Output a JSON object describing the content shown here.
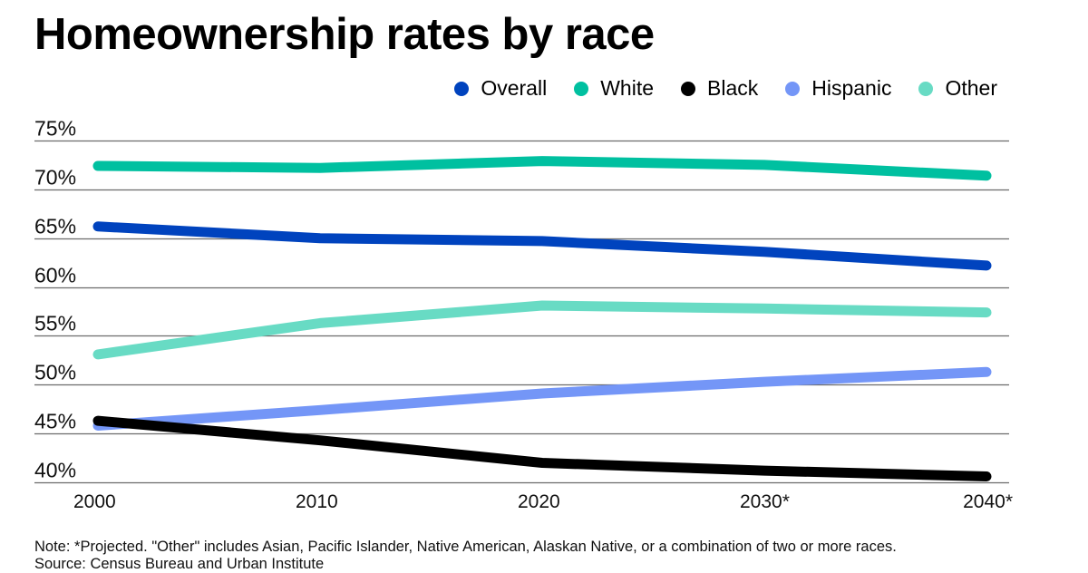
{
  "chart_data": {
    "type": "line",
    "title": "Homeownership rates by race",
    "xlabel": "",
    "ylabel": "",
    "x": [
      "2000",
      "2010",
      "2020",
      "2030*",
      "2040*"
    ],
    "ylim": [
      40,
      75
    ],
    "yticks": [
      75,
      70,
      65,
      60,
      55,
      50,
      45,
      40
    ],
    "ytick_labels": [
      "75%",
      "70%",
      "65%",
      "60%",
      "55%",
      "50%",
      "45%",
      "40%"
    ],
    "grid": true,
    "legend_placement": "top-right",
    "series": [
      {
        "name": "Overall",
        "color": "#0043be",
        "values": [
          66.2,
          65.0,
          64.7,
          63.6,
          62.2
        ]
      },
      {
        "name": "White",
        "color": "#00c0a0",
        "values": [
          72.4,
          72.2,
          72.9,
          72.5,
          71.4
        ]
      },
      {
        "name": "Black",
        "color": "#000000",
        "values": [
          46.3,
          44.3,
          42.0,
          41.2,
          40.6
        ]
      },
      {
        "name": "Hispanic",
        "color": "#7496f7",
        "values": [
          45.8,
          47.4,
          49.1,
          50.3,
          51.3
        ]
      },
      {
        "name": "Other",
        "color": "#68dbc4",
        "values": [
          53.1,
          56.3,
          58.1,
          57.8,
          57.4
        ]
      }
    ],
    "draw_order": [
      "Other",
      "Hispanic",
      "Black",
      "White",
      "Overall"
    ]
  },
  "notes": {
    "note": "Note: *Projected. \"Other\" includes Asian, Pacific Islander, Native American, Alaskan Native, or a combination of two or more races.",
    "source": "Source: Census Bureau and Urban Institute"
  }
}
